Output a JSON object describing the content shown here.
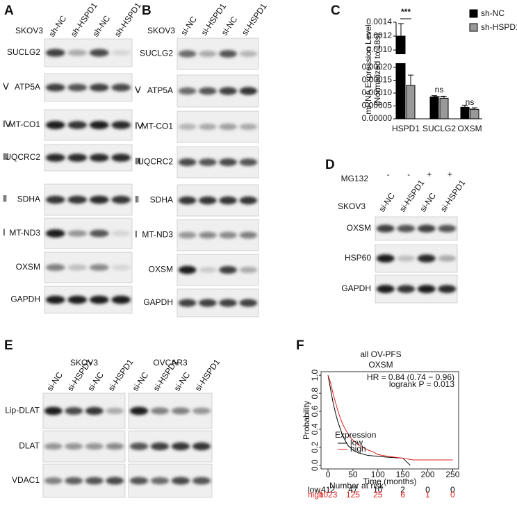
{
  "panels": {
    "A": {
      "label": "A",
      "cell_line": "SKOV3",
      "lanes": [
        "sh-NC",
        "sh-HSPD1",
        "sh-NC",
        "sh-HSPD1"
      ],
      "rows": [
        {
          "name": "SUCLG2"
        },
        {
          "numeral": "Ⅴ",
          "name": "ATP5A"
        },
        {
          "numeral": "Ⅳ",
          "name": "MT-CO1"
        },
        {
          "numeral": "Ⅲ",
          "name": "UQCRC2"
        },
        {
          "numeral": "Ⅱ",
          "name": "SDHA"
        },
        {
          "numeral": "Ⅰ",
          "name": "MT-ND3"
        },
        {
          "name": "OXSM"
        },
        {
          "name": "GAPDH"
        }
      ]
    },
    "B": {
      "label": "B",
      "cell_line": "SKOV3",
      "lanes": [
        "si-NC",
        "si-HSPD1",
        "si-NC",
        "si-HSPD1"
      ],
      "rows": [
        {
          "name": "SUCLG2"
        },
        {
          "numeral": "Ⅴ",
          "name": "ATP5A"
        },
        {
          "numeral": "Ⅳ",
          "name": "MT-CO1"
        },
        {
          "numeral": "Ⅲ",
          "name": "UQCRC2"
        },
        {
          "numeral": "Ⅱ",
          "name": "SDHA"
        },
        {
          "numeral": "Ⅰ",
          "name": "MT-ND3"
        },
        {
          "name": "OXSM"
        },
        {
          "name": "GAPDH"
        }
      ]
    },
    "C": {
      "label": "C",
      "chart": {
        "type": "bar",
        "y_label": [
          "mRNA Expression Level",
          "(Normalized to 18s)"
        ],
        "categories": [
          "HSPD1",
          "SUCLG2",
          "OXSM"
        ],
        "series": [
          {
            "name": "sh-NC",
            "color": "#000000",
            "values": [
              0.0012,
              8.5e-05,
              4.5e-05
            ],
            "errors": [
              0.00018,
              5e-06,
              8e-06
            ]
          },
          {
            "name": "sh-HSPD1",
            "color": "#999999",
            "values": [
              0.00013,
              8e-05,
              3.7e-05
            ],
            "errors": [
              4e-05,
              8e-06,
              6e-06
            ]
          }
        ],
        "ylim_lower": [
          0,
          0.0002
        ],
        "yticks_lower": [
          {
            "value": 0,
            "label": "0.00000"
          },
          {
            "value": 5e-05,
            "label": "0.00005"
          },
          {
            "value": 0.0001,
            "label": "0.00010"
          },
          {
            "value": 0.00015,
            "label": "0.00015"
          },
          {
            "value": 0.0002,
            "label": "0.00020"
          }
        ],
        "ylim_upper": [
          0.001,
          0.0014
        ],
        "yticks_upper": [
          {
            "value": 0.001,
            "label": "0.0010"
          },
          0.0012,
          0.0014
        ],
        "annotations": [
          "***",
          "ns",
          "ns"
        ]
      }
    },
    "D": {
      "label": "D",
      "treatment": {
        "name": "MG132",
        "values": [
          "-",
          "-",
          "+",
          "+"
        ]
      },
      "cell_line": "SKOV3",
      "lanes": [
        "si-NC",
        "si-HSPD1",
        "si-NC",
        "si-HSPD1"
      ],
      "rows": [
        {
          "name": "OXSM"
        },
        {
          "name": "HSP60"
        },
        {
          "name": "GAPDH"
        }
      ]
    },
    "E": {
      "label": "E",
      "groups": [
        {
          "cell_line": "SKOV3",
          "lanes": [
            "si-NC",
            "si-HSPD1",
            "si-NC",
            "si-HSPD1"
          ]
        },
        {
          "cell_line": "OVCAR3",
          "lanes": [
            "si-NC",
            "si-HSPD1",
            "si-NC",
            "si-HSPD1"
          ]
        }
      ],
      "rows": [
        {
          "name": "Lip-DLAT"
        },
        {
          "name": "DLAT"
        },
        {
          "name": "VDAC1"
        }
      ]
    },
    "F": {
      "label": "F",
      "chart": {
        "type": "line",
        "title": [
          "all OV-PFS",
          "OXSM"
        ],
        "stats": [
          "HR = 0.84 (0.74 − 0.96)",
          "logrank P = 0.013"
        ],
        "x_label": "Time (months)",
        "y_label": "Probability",
        "xlim": [
          -14,
          262
        ],
        "xticks": [
          0,
          50,
          100,
          150,
          200,
          250
        ],
        "ylim": [
          -0.04,
          1.04
        ],
        "yticks": [
          {
            "value": 0,
            "label": "0.0"
          },
          {
            "value": 0.2,
            "label": "0.2"
          },
          {
            "value": 0.4,
            "label": "0.4"
          },
          {
            "value": 0.6,
            "label": "0.6"
          },
          {
            "value": 0.8,
            "label": "0.8"
          },
          {
            "value": 1,
            "label": "1.0"
          }
        ],
        "legend_title": "Expression",
        "series": [
          {
            "name": "low",
            "color": "#000000",
            "x": [
              0,
              5,
              10,
              15,
              20,
              25,
              30,
              40,
              50,
              60,
              80,
              100,
              120,
              150,
              165
            ],
            "values": [
              1,
              0.85,
              0.7,
              0.58,
              0.48,
              0.4,
              0.32,
              0.22,
              0.17,
              0.14,
              0.11,
              0.1,
              0.09,
              0.08,
              0
            ]
          },
          {
            "name": "high",
            "color": "#e0201b",
            "x": [
              0,
              5,
              10,
              15,
              20,
              25,
              30,
              40,
              50,
              60,
              70,
              80,
              90,
              100,
              120,
              150,
              170,
              250
            ],
            "values": [
              1,
              0.92,
              0.8,
              0.7,
              0.6,
              0.52,
              0.45,
              0.35,
              0.28,
              0.23,
              0.2,
              0.17,
              0.15,
              0.12,
              0.1,
              0.08,
              0.06,
              0.06
            ]
          }
        ],
        "risk_table": {
          "title": "Number at risk",
          "rows": [
            {
              "name": "low",
              "values": [
                412,
                47,
                10,
                2,
                0,
                0
              ]
            },
            {
              "name": "high",
              "values": [
                1023,
                125,
                25,
                6,
                1,
                0
              ]
            }
          ]
        }
      }
    }
  }
}
